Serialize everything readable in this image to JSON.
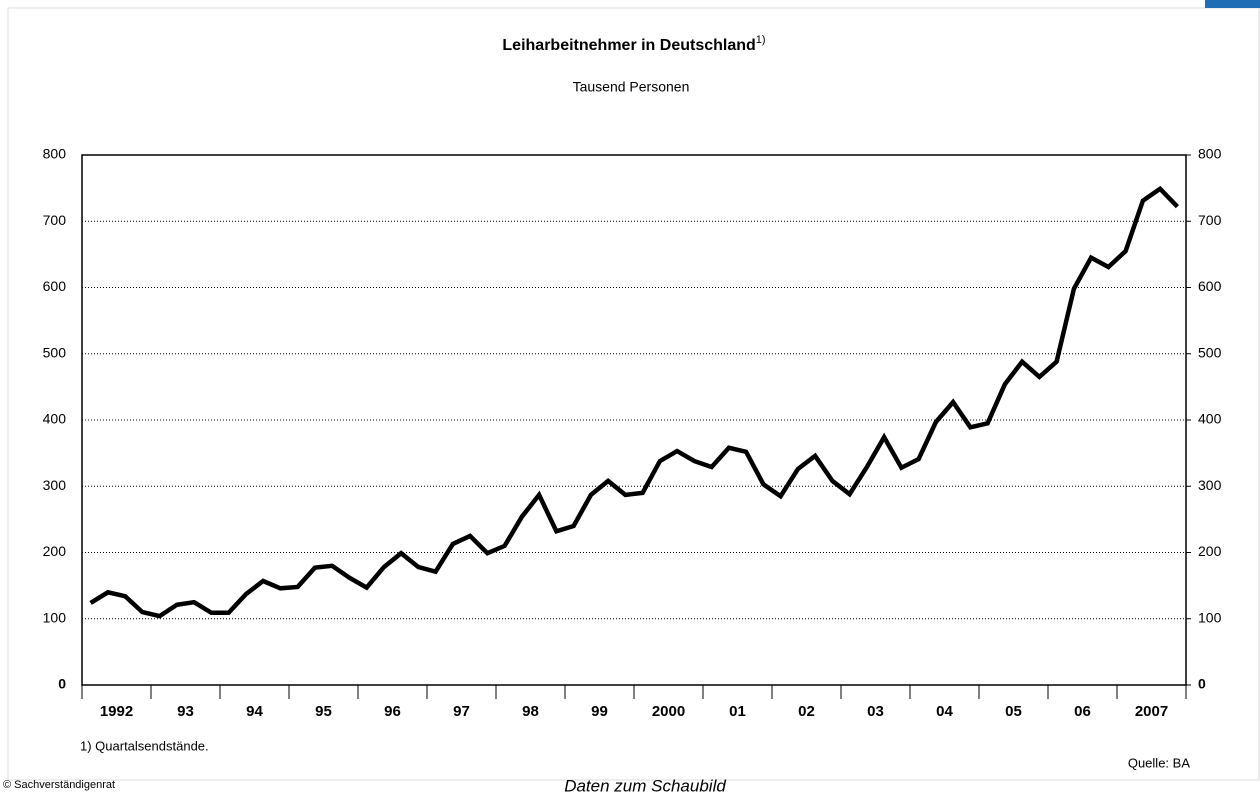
{
  "chart_data": {
    "type": "line",
    "title": "Leiharbeitnehmer in Deutschland",
    "title_note": "1)",
    "subtitle": "Tausend Personen",
    "footnote": "1) Quartalsendstände.",
    "source": "Quelle: BA",
    "copyright": "© Sachverständigenrat",
    "link": "Daten zum Schaubild",
    "categories": [
      null,
      "1992",
      null,
      null,
      null,
      "93",
      null,
      null,
      null,
      "94",
      null,
      null,
      null,
      "95",
      null,
      null,
      null,
      "96",
      null,
      null,
      null,
      "97",
      null,
      null,
      null,
      "98",
      null,
      null,
      null,
      "99",
      null,
      null,
      null,
      "2000",
      null,
      null,
      null,
      "01",
      null,
      null,
      null,
      "02",
      null,
      null,
      null,
      "03",
      null,
      null,
      null,
      "04",
      null,
      null,
      null,
      "05",
      null,
      null,
      null,
      "06",
      null,
      null,
      null,
      "2007",
      null,
      null
    ],
    "series": [
      {
        "name": "Leiharbeitnehmer",
        "color": "#000000",
        "values": [
          124,
          140,
          134,
          110,
          104,
          121,
          125,
          109,
          109,
          137,
          157,
          146,
          148,
          177,
          180,
          162,
          147,
          178,
          199,
          178,
          171,
          213,
          225,
          199,
          210,
          254,
          287,
          232,
          240,
          287,
          308,
          287,
          290,
          338,
          353,
          338,
          329,
          358,
          352,
          303,
          285,
          326,
          346,
          308,
          288,
          329,
          374,
          328,
          341,
          397,
          427,
          389,
          395,
          454,
          488,
          465,
          488,
          598,
          645,
          631,
          655,
          731,
          749,
          722
        ]
      }
    ],
    "ylim": [
      0,
      800
    ],
    "yticks": [
      0,
      100,
      200,
      300,
      400,
      500,
      600,
      700,
      800
    ],
    "y2lim": [
      0,
      800
    ],
    "y2ticks": [
      0,
      100,
      200,
      300,
      400,
      500,
      600,
      700,
      800
    ],
    "grid": true
  }
}
